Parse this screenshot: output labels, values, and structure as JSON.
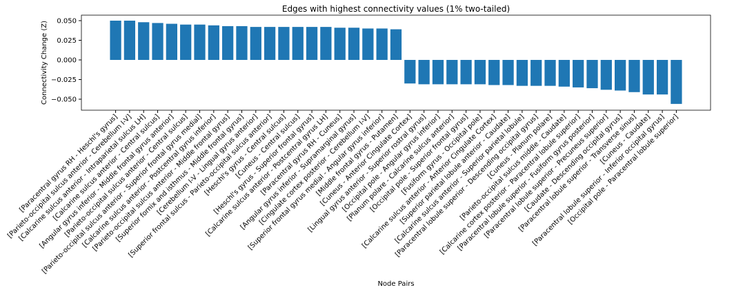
{
  "chart_data": {
    "type": "bar",
    "title": "Edges with highest connectivity values (1% two-tailed)",
    "x_label": "Node Pairs",
    "y_label": "Connectivity Change (Z)",
    "color": "#1f77b4",
    "categories": [
      "[Paracentral gyrus RH - Heschl's gyrus]",
      "[Parieto-occipital sulcus anterior - Cerebellum I-V]",
      "[Calcarine sulcus anterior - Intraparietal sulcus LH]",
      "[Calcarine sulcus anterior - Central sulcus]",
      "[Angular gyrus inferior - Middle frontal gyrus anterior]",
      "[Parieto-occipital sulcus anterior - Central sulcus]",
      "[Parieto-occipital sulcus anterior - Superior frontal gyrus medial]",
      "[Calcarine sulcus anterior - Postcentral gyrus inferior]",
      "[Parieto-occipital sulcus anterior - Middle frontal gyrus]",
      "[Superior fornix and isthmus - Middle frontal gyrus]",
      "[Cerebellum I-V - Lingual gyrus anterior]",
      "[Superior frontal sulcus - Parieto-occipital sulcus anterior]",
      "[Heschl's gyrus - Central sulcus]",
      "[Cuneus - Central sulcus]",
      "[Heschl's gyrus - Superior frontal gyrus]",
      "[Calcarine sulcus anterior - Postcentral gyrus LH]",
      "[Paracentral gyrus RH - Cuneus]",
      "[Angular gyrus inferior - Supramarginal gyrus]",
      "[Cingulate cortex posterior - Cerebellum I-V]",
      "[Superior frontal gyrus medial - Angular gyrus inferior]",
      "[Middle frontal gyrus - Putamen]",
      "[Cuneus - Anterior Cingulate Cortex]",
      "[Lingual gyrus anterior - Superior rostral gyrus]",
      "[Occipital pole - Angular gyrus inferior]",
      "[Planum polare - Calcarine sulcus anterior]",
      "[Occipital pole - Superior frontal gyrus]",
      "[Fusiform gyrus - Occipital pole]",
      "[Calcarine sulcus anterior - Anterior Cingulate Cortex]",
      "[Superior parietal lobule anterior - Caudate]",
      "[Calcarine sulcus anterior - Superior parietal lobule]",
      "[Paracentral lobule superior - Descending occipital gyrus]",
      "[Cuneus - Planum polare]",
      "[Parieto-occipital sulcus middle - Caudate]",
      "[Calcarine cortex posterior - Paracentral lobule superior]",
      "[Paracentral lobule superior - Fusiform gyrus posterior]",
      "[Paracentral lobule superior - Precuneus superior]",
      "[Caudate - Descending occipital gyrus]",
      "[Paracentral lobule superior - Transverse sinus]",
      "[Cuneus - Caudate]",
      "[Paracentral lobule superior - Inferior occipital gyrus]",
      "[Occipital pole - Paracentral lobule superior]"
    ],
    "values": [
      0.05,
      0.05,
      0.048,
      0.047,
      0.046,
      0.045,
      0.045,
      0.044,
      0.043,
      0.043,
      0.042,
      0.042,
      0.042,
      0.042,
      0.042,
      0.042,
      0.041,
      0.041,
      0.04,
      0.04,
      0.039,
      -0.03,
      -0.031,
      -0.031,
      -0.031,
      -0.031,
      -0.031,
      -0.032,
      -0.032,
      -0.033,
      -0.033,
      -0.033,
      -0.034,
      -0.035,
      -0.036,
      -0.038,
      -0.039,
      -0.041,
      -0.044,
      -0.044,
      -0.056
    ],
    "ylim": [
      -0.064,
      0.057
    ],
    "yticks": [
      {
        "value": -0.05,
        "label": "−0.050"
      },
      {
        "value": -0.025,
        "label": "−0.025"
      },
      {
        "value": 0,
        "label": "0.000"
      },
      {
        "value": 0.025,
        "label": "0.025"
      },
      {
        "value": 0.05,
        "label": "0.050"
      }
    ]
  }
}
